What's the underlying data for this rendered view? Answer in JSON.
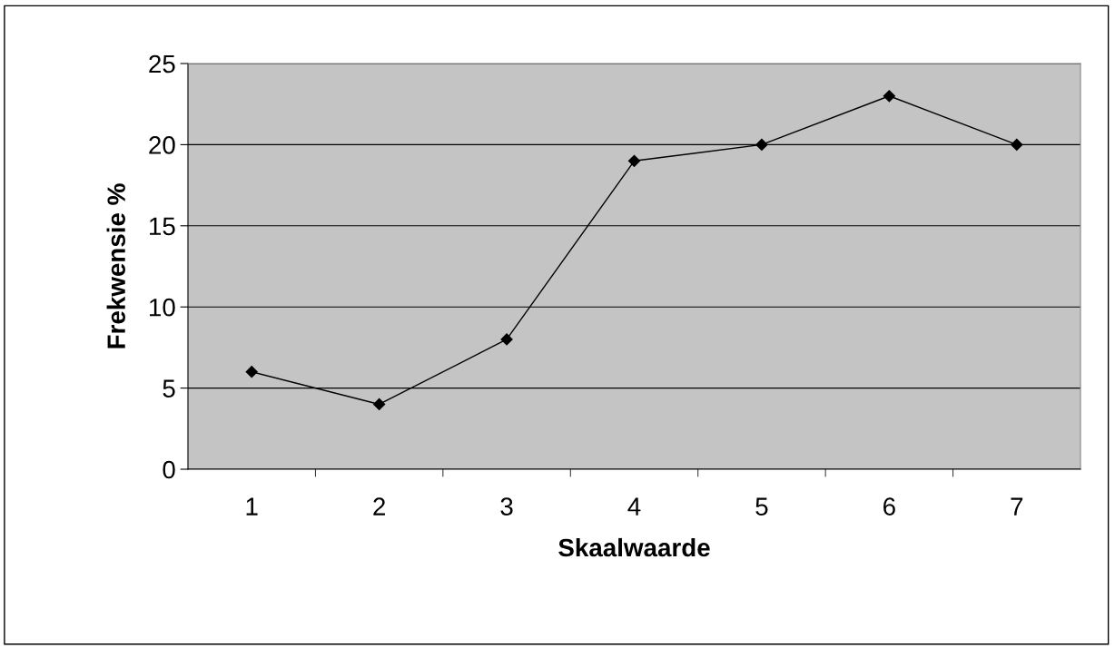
{
  "chart_data": {
    "type": "line",
    "xlabel": "Skaalwaarde",
    "ylabel": "Frekwensie %",
    "categories": [
      "1",
      "2",
      "3",
      "4",
      "5",
      "6",
      "7"
    ],
    "series": [
      {
        "color": "#000000",
        "values": [
          6,
          4,
          8,
          19,
          20,
          23,
          20
        ]
      }
    ],
    "ylim": [
      0,
      25
    ],
    "yticks": [
      0,
      5,
      10,
      15,
      20,
      25
    ],
    "grid": "y",
    "marker": "diamond",
    "line_style": "solid",
    "legend": false
  }
}
